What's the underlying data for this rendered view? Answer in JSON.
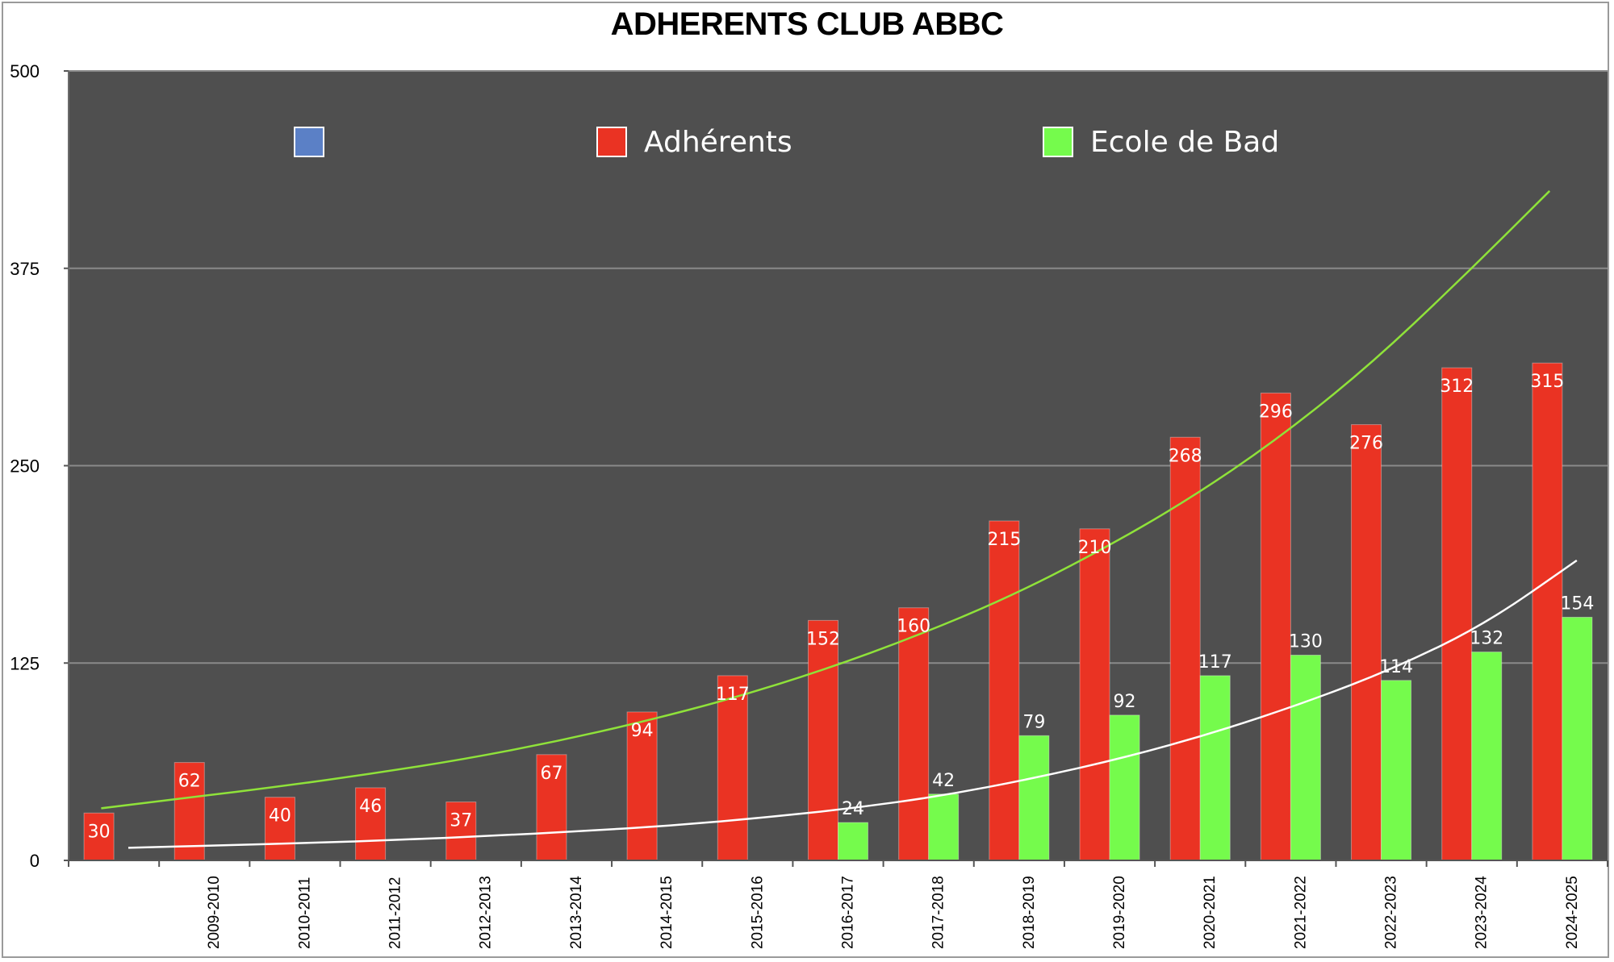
{
  "chart_data": {
    "type": "bar",
    "title": "ADHERENTS CLUB ABBC",
    "xlabel": "",
    "ylabel": "",
    "ylim": [
      0,
      500
    ],
    "yticks": [
      "0",
      "125",
      "250",
      "375",
      "500"
    ],
    "grid": true,
    "legend_position": "top",
    "legend": [
      {
        "name": "",
        "color": "#5b80c6"
      },
      {
        "name": "Adhérents",
        "color": "#ea3323"
      },
      {
        "name": "Ecole de Bad",
        "color": "#75fb4c"
      }
    ],
    "categories": [
      "",
      "2009-2010",
      "2010-2011",
      "2011-2012",
      "2012-2013",
      "2013-2014",
      "2014-2015",
      "2015-2016",
      "2016-2017",
      "2017-2018",
      "2018-2019",
      "2019-2020",
      "2020-2021",
      "2021-2022",
      "2022-2023",
      "2023-2024",
      "2024-2025"
    ],
    "series": [
      {
        "name": "Adhérents",
        "color": "#ea3323",
        "values": [
          30,
          62,
          40,
          46,
          37,
          67,
          94,
          117,
          152,
          160,
          215,
          210,
          268,
          296,
          276,
          312,
          315
        ]
      },
      {
        "name": "Ecole de Bad",
        "color": "#75fb4c",
        "values": [
          null,
          null,
          null,
          null,
          null,
          null,
          null,
          null,
          24,
          42,
          79,
          92,
          117,
          130,
          114,
          132,
          154
        ]
      }
    ],
    "trendlines": [
      {
        "series": "Adhérents",
        "type": "exponential",
        "color": "#8fe23a",
        "values": [
          33,
          40,
          47,
          55,
          64,
          75,
          88,
          103,
          121,
          142,
          166,
          195,
          228,
          267,
          313,
          367,
          424
        ]
      },
      {
        "series": "Ecole de Bad",
        "type": "exponential",
        "color": "#ffffff",
        "values": [
          8,
          9.5,
          11,
          13,
          15.5,
          18.5,
          22,
          27,
          33,
          41,
          52,
          65,
          81,
          100,
          122,
          150,
          190
        ]
      }
    ],
    "colors": {
      "plot_background": "#4f4f4f",
      "gridline": "#8a8a8a",
      "axis": "#6a6a6a"
    }
  }
}
